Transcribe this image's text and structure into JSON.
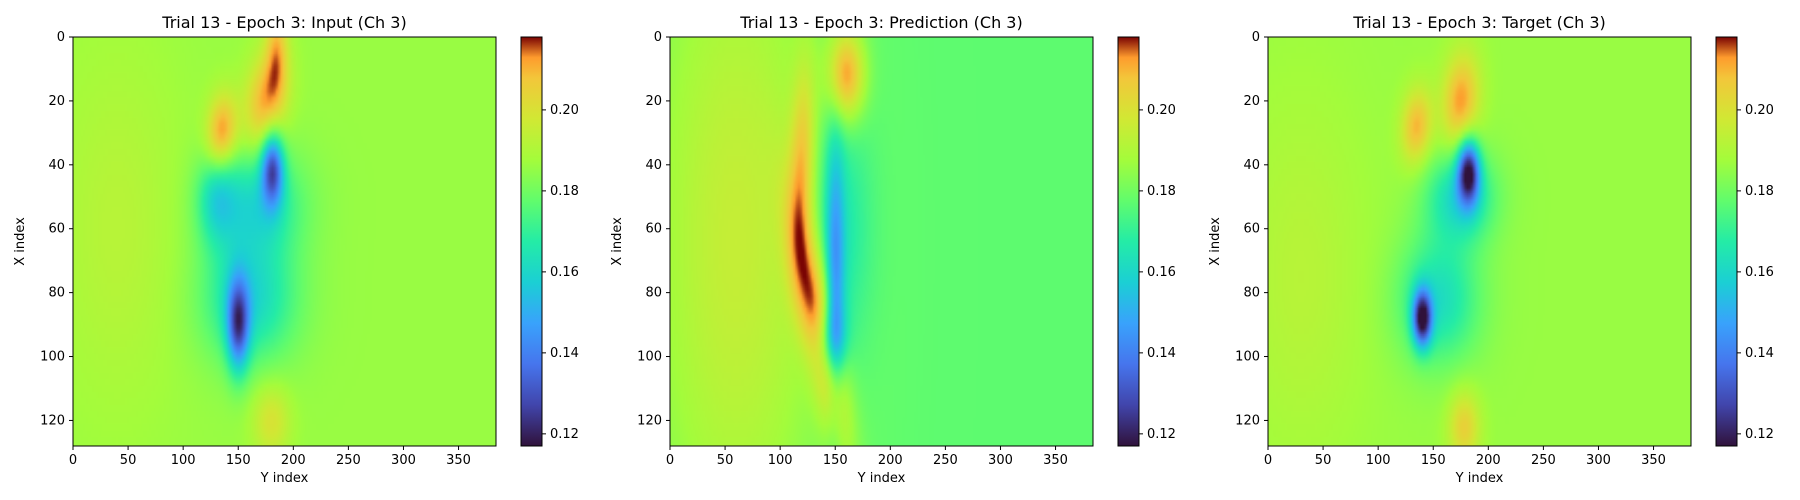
{
  "chart_data": [
    {
      "type": "heatmap",
      "title": "Trial 13 - Epoch 3: Input (Ch 3)",
      "xlabel": "Y index",
      "ylabel": "X index",
      "x_range": [
        0,
        384
      ],
      "y_range": [
        0,
        128
      ],
      "x_ticks": [
        0,
        50,
        100,
        150,
        200,
        250,
        300,
        350
      ],
      "y_ticks": [
        0,
        20,
        40,
        60,
        80,
        100,
        120
      ],
      "colormap": "turbo",
      "colorbar": {
        "range": [
          0.117,
          0.218
        ],
        "ticks": [
          0.12,
          0.14,
          0.16,
          0.18,
          0.2
        ],
        "tick_labels": [
          "0.12",
          "0.14",
          "0.16",
          "0.18",
          "0.20"
        ]
      },
      "background_value": 0.186,
      "features": [
        {
          "x": 175,
          "y": 20,
          "value": 0.212,
          "sx": 14,
          "sy": 10,
          "rot": -0.4
        },
        {
          "x": 135,
          "y": 30,
          "value": 0.215,
          "sx": 10,
          "sy": 8,
          "rot": -0.3
        },
        {
          "x": 185,
          "y": 4,
          "value": 0.205,
          "sx": 7,
          "sy": 10,
          "rot": 0
        },
        {
          "x": 181,
          "y": 41,
          "value": 0.138,
          "sx": 7,
          "sy": 8,
          "rot": 0
        },
        {
          "x": 165,
          "y": 52,
          "value": 0.162,
          "sx": 30,
          "sy": 12,
          "rot": 0
        },
        {
          "x": 150,
          "y": 90,
          "value": 0.14,
          "sx": 7,
          "sy": 10,
          "rot": 0
        },
        {
          "x": 160,
          "y": 82,
          "value": 0.16,
          "sx": 30,
          "sy": 14,
          "rot": 0
        },
        {
          "x": 130,
          "y": 50,
          "value": 0.168,
          "sx": 12,
          "sy": 10,
          "rot": 0
        },
        {
          "x": 180,
          "y": 120,
          "value": 0.2,
          "sx": 12,
          "sy": 8,
          "rot": 0
        },
        {
          "x": 40,
          "y": 60,
          "value": 0.192,
          "sx": 40,
          "sy": 40,
          "rot": 0
        }
      ]
    },
    {
      "type": "heatmap",
      "title": "Trial 13 - Epoch 3: Prediction (Ch 3)",
      "xlabel": "Y index",
      "ylabel": "X index",
      "x_range": [
        0,
        384
      ],
      "y_range": [
        0,
        128
      ],
      "x_ticks": [
        0,
        50,
        100,
        150,
        200,
        250,
        300,
        350
      ],
      "y_ticks": [
        0,
        20,
        40,
        60,
        80,
        100,
        120
      ],
      "colormap": "turbo",
      "colorbar": {
        "range": [
          0.117,
          0.218
        ],
        "ticks": [
          0.12,
          0.14,
          0.16,
          0.18,
          0.2
        ],
        "tick_labels": [
          "0.12",
          "0.14",
          "0.16",
          "0.18",
          "0.20"
        ]
      },
      "background_value": 0.177,
      "features": [
        {
          "x": 60,
          "y": 64,
          "value": 0.195,
          "sx": 60,
          "sy": 80,
          "rot": 0
        },
        {
          "x": 135,
          "y": 90,
          "value": 0.215,
          "sx": 10,
          "sy": 28,
          "rot": -0.6
        },
        {
          "x": 160,
          "y": 12,
          "value": 0.212,
          "sx": 12,
          "sy": 10,
          "rot": 0
        },
        {
          "x": 120,
          "y": 40,
          "value": 0.2,
          "sx": 8,
          "sy": 22,
          "rot": 0.1
        },
        {
          "x": 155,
          "y": 60,
          "value": 0.162,
          "sx": 20,
          "sy": 30,
          "rot": 0
        },
        {
          "x": 150,
          "y": 75,
          "value": 0.15,
          "sx": 6,
          "sy": 30,
          "rot": 0
        },
        {
          "x": 145,
          "y": 95,
          "value": 0.148,
          "sx": 10,
          "sy": 8,
          "rot": 0
        }
      ]
    },
    {
      "type": "heatmap",
      "title": "Trial 13 - Epoch 3: Target (Ch 3)",
      "xlabel": "Y index",
      "ylabel": "X index",
      "x_range": [
        0,
        384
      ],
      "y_range": [
        0,
        128
      ],
      "x_ticks": [
        0,
        50,
        100,
        150,
        200,
        250,
        300,
        350
      ],
      "y_ticks": [
        0,
        20,
        40,
        60,
        80,
        100,
        120
      ],
      "colormap": "turbo",
      "colorbar": {
        "range": [
          0.117,
          0.218
        ],
        "ticks": [
          0.12,
          0.14,
          0.16,
          0.18,
          0.2
        ],
        "tick_labels": [
          "0.12",
          "0.14",
          "0.16",
          "0.18",
          "0.20"
        ]
      },
      "background_value": 0.186,
      "features": [
        {
          "x": 175,
          "y": 20,
          "value": 0.213,
          "sx": 12,
          "sy": 10,
          "rot": -0.4
        },
        {
          "x": 135,
          "y": 28,
          "value": 0.21,
          "sx": 10,
          "sy": 8,
          "rot": -0.3
        },
        {
          "x": 182,
          "y": 42,
          "value": 0.128,
          "sx": 7,
          "sy": 7,
          "rot": 0
        },
        {
          "x": 175,
          "y": 50,
          "value": 0.16,
          "sx": 22,
          "sy": 10,
          "rot": 0
        },
        {
          "x": 140,
          "y": 88,
          "value": 0.125,
          "sx": 6,
          "sy": 6,
          "rot": 0
        },
        {
          "x": 155,
          "y": 82,
          "value": 0.162,
          "sx": 26,
          "sy": 14,
          "rot": 0
        },
        {
          "x": 178,
          "y": 122,
          "value": 0.205,
          "sx": 10,
          "sy": 8,
          "rot": 0
        },
        {
          "x": 30,
          "y": 75,
          "value": 0.192,
          "sx": 40,
          "sy": 40,
          "rot": 0
        }
      ]
    }
  ]
}
